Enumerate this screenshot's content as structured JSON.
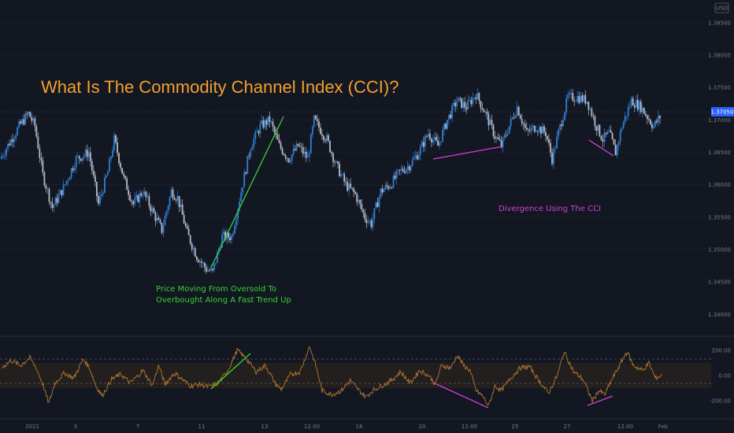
{
  "title": "What Is The Commodity Channel Index (CCI)?",
  "currency": "USD",
  "colors": {
    "background": "#131722",
    "candle_up": "#2f7fd4",
    "candle_down": "#b7bac4",
    "title": "#f0a030",
    "cci_line": "#a8702c",
    "cci_band_fill": "#221f1e",
    "trend_line": "#34d334",
    "divergence": "#d63fd6",
    "price_marker": "#2962ff"
  },
  "annotations": {
    "trend_text_line1": "Price Moving From Oversold To",
    "trend_text_line2": "Overbought Along A Fast Trend Up",
    "divergence_text": "Divergence Using The CCI"
  },
  "chart_data": [
    {
      "type": "candlestick",
      "name": "price",
      "price_axis_ticks": [
        "1.38500",
        "1.38000",
        "1.37500",
        "1.37000",
        "1.36500",
        "1.36000",
        "1.35500",
        "1.35000",
        "1.34500",
        "1.34000"
      ],
      "last_price": "1.37050",
      "ylim": [
        1.3375,
        1.3885
      ],
      "time_axis_labels": [
        "2021",
        "5",
        "7",
        "11",
        "13",
        "12:00",
        "18",
        "20",
        "12:00",
        "25",
        "27",
        "12:00",
        "Feb"
      ],
      "anchor_closes": [
        [
          0,
          1.364
        ],
        [
          6,
          1.3665
        ],
        [
          12,
          1.369
        ],
        [
          18,
          1.371
        ],
        [
          22,
          1.369
        ],
        [
          27,
          1.3615
        ],
        [
          33,
          1.3565
        ],
        [
          40,
          1.3595
        ],
        [
          48,
          1.364
        ],
        [
          56,
          1.365
        ],
        [
          62,
          1.357
        ],
        [
          68,
          1.362
        ],
        [
          72,
          1.367
        ],
        [
          78,
          1.361
        ],
        [
          84,
          1.357
        ],
        [
          90,
          1.359
        ],
        [
          96,
          1.356
        ],
        [
          102,
          1.353
        ],
        [
          108,
          1.359
        ],
        [
          112,
          1.358
        ],
        [
          118,
          1.3525
        ],
        [
          124,
          1.349
        ],
        [
          130,
          1.347
        ],
        [
          134,
          1.3465
        ],
        [
          140,
          1.352
        ],
        [
          146,
          1.352
        ],
        [
          152,
          1.359
        ],
        [
          158,
          1.366
        ],
        [
          164,
          1.369
        ],
        [
          170,
          1.37
        ],
        [
          176,
          1.366
        ],
        [
          182,
          1.364
        ],
        [
          188,
          1.366
        ],
        [
          194,
          1.364
        ],
        [
          198,
          1.37
        ],
        [
          206,
          1.367
        ],
        [
          212,
          1.363
        ],
        [
          218,
          1.36
        ],
        [
          224,
          1.3585
        ],
        [
          230,
          1.355
        ],
        [
          234,
          1.354
        ],
        [
          240,
          1.359
        ],
        [
          246,
          1.36
        ],
        [
          252,
          1.362
        ],
        [
          258,
          1.363
        ],
        [
          264,
          1.365
        ],
        [
          270,
          1.368
        ],
        [
          276,
          1.366
        ],
        [
          282,
          1.37
        ],
        [
          288,
          1.373
        ],
        [
          294,
          1.372
        ],
        [
          300,
          1.374
        ],
        [
          306,
          1.371
        ],
        [
          312,
          1.3675
        ],
        [
          316,
          1.366
        ],
        [
          320,
          1.3685
        ],
        [
          326,
          1.372
        ],
        [
          332,
          1.368
        ],
        [
          338,
          1.369
        ],
        [
          344,
          1.368
        ],
        [
          348,
          1.364
        ],
        [
          352,
          1.368
        ],
        [
          358,
          1.3735
        ],
        [
          364,
          1.3735
        ],
        [
          370,
          1.373
        ],
        [
          376,
          1.369
        ],
        [
          380,
          1.367
        ],
        [
          384,
          1.368
        ],
        [
          388,
          1.365
        ],
        [
          392,
          1.369
        ],
        [
          398,
          1.373
        ],
        [
          404,
          1.372
        ],
        [
          408,
          1.3705
        ],
        [
          412,
          1.369
        ],
        [
          416,
          1.3705
        ]
      ]
    },
    {
      "type": "line",
      "name": "CCI",
      "indicator_axis_ticks": [
        "200.00",
        "0.00",
        "-200.00"
      ],
      "band_levels": [
        100,
        -100
      ],
      "ylim": [
        -280,
        280
      ],
      "anchor_values": [
        [
          0,
          60
        ],
        [
          6,
          120
        ],
        [
          12,
          80
        ],
        [
          18,
          140
        ],
        [
          22,
          60
        ],
        [
          26,
          -60
        ],
        [
          30,
          -220
        ],
        [
          34,
          -60
        ],
        [
          40,
          20
        ],
        [
          46,
          -20
        ],
        [
          52,
          130
        ],
        [
          56,
          60
        ],
        [
          60,
          -80
        ],
        [
          64,
          -160
        ],
        [
          70,
          -30
        ],
        [
          76,
          10
        ],
        [
          82,
          -60
        ],
        [
          90,
          40
        ],
        [
          96,
          -80
        ],
        [
          100,
          80
        ],
        [
          104,
          -70
        ],
        [
          110,
          20
        ],
        [
          116,
          -40
        ],
        [
          120,
          -80
        ],
        [
          126,
          -70
        ],
        [
          132,
          -90
        ],
        [
          138,
          -60
        ],
        [
          144,
          40
        ],
        [
          150,
          200
        ],
        [
          156,
          130
        ],
        [
          162,
          30
        ],
        [
          168,
          80
        ],
        [
          174,
          -60
        ],
        [
          178,
          -110
        ],
        [
          184,
          10
        ],
        [
          190,
          30
        ],
        [
          196,
          230
        ],
        [
          200,
          80
        ],
        [
          204,
          -120
        ],
        [
          210,
          -150
        ],
        [
          216,
          -120
        ],
        [
          222,
          -40
        ],
        [
          226,
          -100
        ],
        [
          232,
          -170
        ],
        [
          236,
          -120
        ],
        [
          242,
          -80
        ],
        [
          248,
          -40
        ],
        [
          254,
          30
        ],
        [
          260,
          -60
        ],
        [
          266,
          40
        ],
        [
          272,
          0
        ],
        [
          276,
          -70
        ],
        [
          280,
          80
        ],
        [
          286,
          60
        ],
        [
          290,
          160
        ],
        [
          294,
          80
        ],
        [
          298,
          40
        ],
        [
          302,
          -120
        ],
        [
          306,
          -160
        ],
        [
          310,
          -240
        ],
        [
          314,
          -80
        ],
        [
          318,
          -120
        ],
        [
          324,
          -20
        ],
        [
          330,
          60
        ],
        [
          336,
          70
        ],
        [
          342,
          -40
        ],
        [
          348,
          -140
        ],
        [
          354,
          10
        ],
        [
          358,
          190
        ],
        [
          364,
          30
        ],
        [
          370,
          -30
        ],
        [
          376,
          -200
        ],
        [
          380,
          -120
        ],
        [
          384,
          -150
        ],
        [
          388,
          -40
        ],
        [
          392,
          50
        ],
        [
          398,
          190
        ],
        [
          402,
          80
        ],
        [
          408,
          40
        ],
        [
          412,
          100
        ],
        [
          416,
          -20
        ],
        [
          420,
          0
        ]
      ]
    }
  ]
}
